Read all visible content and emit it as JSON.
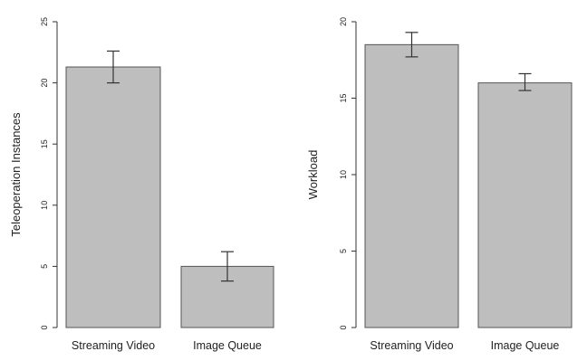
{
  "chart_data": [
    {
      "type": "bar",
      "categories": [
        "Streaming Video",
        "Image Queue"
      ],
      "values": [
        21.3,
        5.0
      ],
      "error_low": [
        20.0,
        3.8
      ],
      "error_high": [
        22.6,
        6.2
      ],
      "ylabel": "Teleoperation Instances",
      "ylim": [
        0,
        25
      ],
      "yticks": [
        0,
        5,
        10,
        15,
        20,
        25
      ],
      "grid": false
    },
    {
      "type": "bar",
      "categories": [
        "Streaming Video",
        "Image Queue"
      ],
      "values": [
        18.5,
        16.0
      ],
      "error_low": [
        17.7,
        15.5
      ],
      "error_high": [
        19.3,
        16.6
      ],
      "ylabel": "Workload",
      "ylim": [
        0,
        20
      ],
      "yticks": [
        0,
        5,
        10,
        15,
        20
      ],
      "grid": false
    }
  ],
  "colors": {
    "bar_fill": "#bebebe",
    "bar_stroke": "#555555",
    "axis": "#333333",
    "error_bar": "#333333"
  }
}
